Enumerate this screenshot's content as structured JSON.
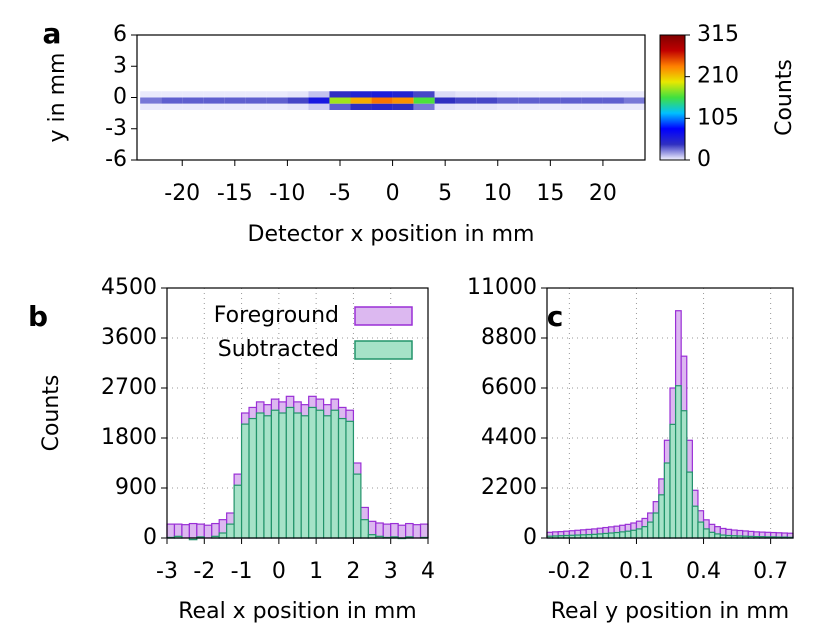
{
  "chart_data": [
    {
      "type": "heatmap",
      "panel_label": "a",
      "xlabel": "Detector x position in mm",
      "ylabel": "y in mm",
      "x": [
        -23,
        -21,
        -19,
        -17,
        -15,
        -13,
        -11,
        -9,
        -7,
        -5,
        -3,
        -1,
        1,
        3,
        5,
        7,
        9,
        11,
        13,
        15,
        17,
        19,
        21,
        23
      ],
      "y": [
        0.3,
        -0.3,
        -0.9
      ],
      "z": [
        [
          2,
          2,
          2,
          2,
          2,
          2,
          2,
          3,
          10,
          40,
          50,
          55,
          50,
          35,
          5,
          3,
          3,
          2,
          2,
          2,
          2,
          2,
          2,
          2
        ],
        [
          25,
          30,
          30,
          30,
          30,
          30,
          30,
          35,
          60,
          180,
          220,
          240,
          230,
          160,
          40,
          35,
          35,
          30,
          30,
          30,
          30,
          30,
          30,
          25
        ],
        [
          2,
          2,
          2,
          2,
          2,
          2,
          2,
          3,
          8,
          30,
          40,
          45,
          40,
          25,
          4,
          3,
          3,
          2,
          2,
          2,
          2,
          2,
          2,
          2
        ]
      ],
      "xlim": [
        -24.3,
        24
      ],
      "ylim": [
        -6,
        6
      ],
      "xticks": [
        -20,
        -15,
        -10,
        -5,
        0,
        5,
        10,
        15,
        20
      ],
      "yticks": [
        6,
        3,
        0,
        -3,
        -6
      ],
      "colorbar": {
        "label": "Counts",
        "lim": [
          0,
          315
        ],
        "ticks": [
          0,
          105,
          210,
          315
        ],
        "colors": [
          "#f4f4ff",
          "#3030c0",
          "#0000ff",
          "#00c0ff",
          "#40e040",
          "#e8e800",
          "#ff8000",
          "#c00000",
          "#800000"
        ]
      }
    },
    {
      "type": "histogram",
      "panel_label": "b",
      "xlabel": "Real x position in mm",
      "ylabel": "Counts",
      "bins": [
        -3,
        -2.8,
        -2.6,
        -2.4,
        -2.2,
        -2,
        -1.8,
        -1.6,
        -1.4,
        -1.2,
        -1,
        -0.8,
        -0.6,
        -0.4,
        -0.2,
        0,
        0.2,
        0.4,
        0.6,
        0.8,
        1,
        1.2,
        1.4,
        1.6,
        1.8,
        2,
        2.2,
        2.4,
        2.6,
        2.8,
        3,
        3.2,
        3.4,
        3.6,
        3.8,
        4
      ],
      "series": [
        {
          "name": "Foreground",
          "color": "#dcb8f0",
          "edge": "#9a2fd6",
          "values": [
            250,
            250,
            240,
            260,
            250,
            230,
            260,
            330,
            450,
            1150,
            2250,
            2350,
            2450,
            2400,
            2500,
            2450,
            2550,
            2450,
            2400,
            2550,
            2500,
            2400,
            2500,
            2350,
            2300,
            1350,
            550,
            300,
            270,
            250,
            260,
            230,
            260,
            240,
            250
          ]
        },
        {
          "name": "Subtracted",
          "color": "#a6e2c8",
          "edge": "#22946a",
          "values": [
            10,
            30,
            0,
            -30,
            20,
            0,
            30,
            90,
            250,
            950,
            2050,
            2150,
            2250,
            2200,
            2300,
            2250,
            2350,
            2250,
            2200,
            2350,
            2300,
            2200,
            2300,
            2150,
            2100,
            1150,
            330,
            60,
            30,
            10,
            20,
            -10,
            20,
            0,
            10
          ]
        }
      ],
      "xlim": [
        -3,
        4
      ],
      "ylim": [
        0,
        4500
      ],
      "xticks": [
        -3,
        -2,
        -1,
        0,
        1,
        2,
        3,
        4
      ],
      "yticks": [
        0,
        900,
        1800,
        2700,
        3600,
        4500
      ],
      "grid": true,
      "legend": "top"
    },
    {
      "type": "histogram",
      "panel_label": "c",
      "xlabel": "Real y position in mm",
      "bins": [
        -0.3,
        -0.275,
        -0.25,
        -0.225,
        -0.2,
        -0.175,
        -0.15,
        -0.125,
        -0.1,
        -0.075,
        -0.05,
        -0.025,
        0,
        0.025,
        0.05,
        0.075,
        0.1,
        0.125,
        0.15,
        0.175,
        0.2,
        0.225,
        0.25,
        0.275,
        0.3,
        0.325,
        0.35,
        0.375,
        0.4,
        0.425,
        0.45,
        0.475,
        0.5,
        0.525,
        0.55,
        0.575,
        0.6,
        0.625,
        0.65,
        0.675,
        0.7,
        0.725,
        0.75,
        0.775,
        0.8
      ],
      "series": [
        {
          "name": "Foreground",
          "color": "#dcb8f0",
          "edge": "#9a2fd6",
          "values": [
            250,
            270,
            280,
            300,
            320,
            340,
            360,
            380,
            400,
            430,
            460,
            490,
            520,
            560,
            600,
            660,
            740,
            860,
            1100,
            1600,
            2600,
            4300,
            6600,
            10000,
            8000,
            4300,
            2100,
            1200,
            800,
            600,
            500,
            420,
            380,
            350,
            330,
            310,
            290,
            270,
            260,
            250,
            240,
            230,
            220,
            210
          ]
        },
        {
          "name": "Subtracted",
          "color": "#a6e2c8",
          "edge": "#22946a",
          "values": [
            80,
            90,
            100,
            110,
            120,
            130,
            140,
            150,
            160,
            180,
            200,
            220,
            240,
            270,
            300,
            340,
            400,
            500,
            700,
            1100,
            1900,
            3300,
            5000,
            6700,
            5600,
            2900,
            1400,
            700,
            400,
            250,
            180,
            130,
            110,
            100,
            90,
            80,
            70,
            60,
            60,
            50,
            50,
            40,
            40,
            30
          ]
        }
      ],
      "xlim": [
        -0.3,
        0.8
      ],
      "ylim": [
        0,
        11000
      ],
      "xticks": [
        -0.2,
        0.1,
        0.4,
        0.7
      ],
      "yticks": [
        0,
        2200,
        4400,
        6600,
        8800,
        11000
      ],
      "grid": true
    }
  ]
}
